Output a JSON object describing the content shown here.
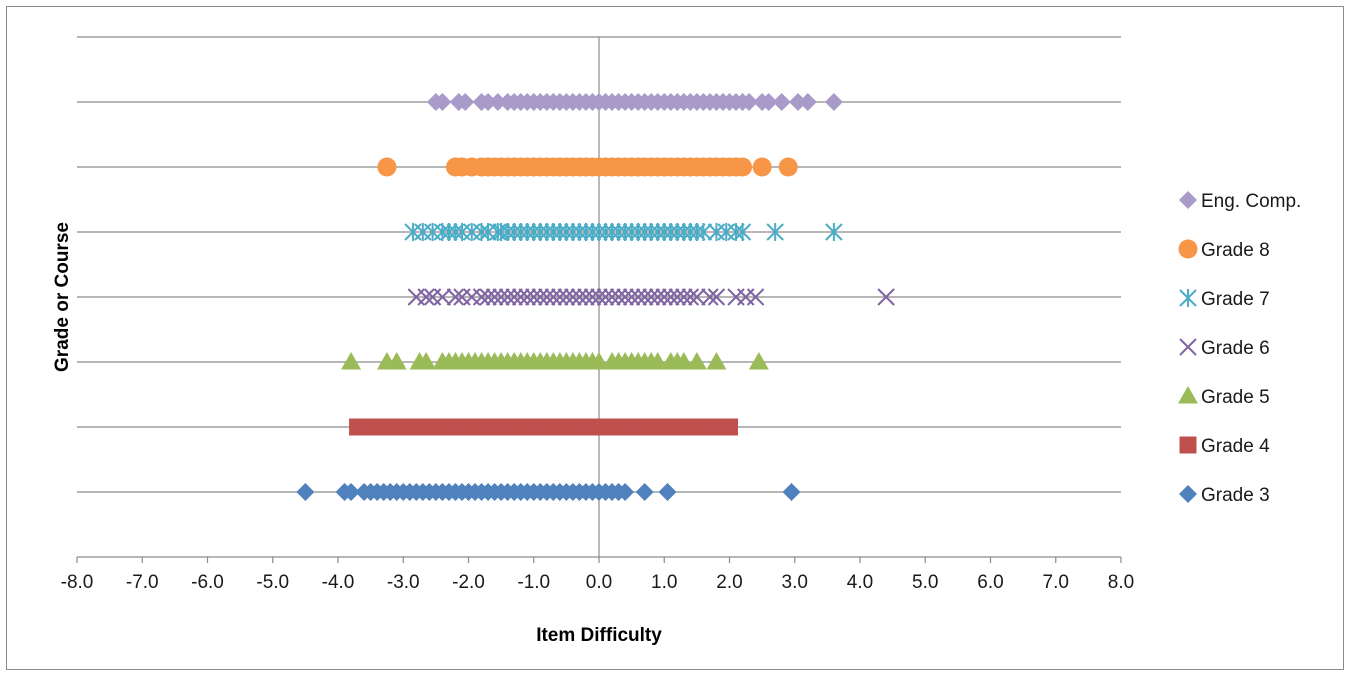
{
  "chart_data": {
    "type": "scatter",
    "title": "",
    "xlabel": "Item Difficulty",
    "ylabel": "Grade or Course",
    "xlim": [
      -8.0,
      8.0
    ],
    "x_ticks": [
      "-8.0",
      "-7.0",
      "-6.0",
      "-5.0",
      "-4.0",
      "-3.0",
      "-2.0",
      "-1.0",
      "0.0",
      "1.0",
      "2.0",
      "3.0",
      "4.0",
      "5.0",
      "6.0",
      "7.0",
      "8.0"
    ],
    "ylim": [
      0,
      8
    ],
    "grid": "horizontal",
    "legend_position": "right",
    "series": [
      {
        "name": "Grade 3",
        "y": 1,
        "marker": "diamond",
        "color": "#4F81BD",
        "x": [
          -4.5,
          -3.9,
          -3.8,
          -3.6,
          -3.5,
          -3.4,
          -3.3,
          -3.2,
          -3.1,
          -3.0,
          -2.9,
          -2.8,
          -2.7,
          -2.6,
          -2.5,
          -2.4,
          -2.3,
          -2.2,
          -2.1,
          -2.0,
          -1.9,
          -1.8,
          -1.7,
          -1.6,
          -1.5,
          -1.4,
          -1.3,
          -1.2,
          -1.1,
          -1.0,
          -0.9,
          -0.8,
          -0.7,
          -0.6,
          -0.5,
          -0.4,
          -0.3,
          -0.2,
          -0.1,
          0.0,
          0.1,
          0.2,
          0.3,
          0.4,
          0.7,
          1.05,
          2.95
        ]
      },
      {
        "name": "Grade 4",
        "y": 2,
        "marker": "square",
        "color": "#C0504D",
        "x": [
          -3.7,
          -3.6,
          -3.5,
          -3.4,
          -3.3,
          -3.2,
          -3.1,
          -3.0,
          -2.9,
          -2.8,
          -2.7,
          -2.6,
          -2.5,
          -2.4,
          -2.3,
          -2.2,
          -2.1,
          -2.0,
          -1.9,
          -1.8,
          -1.7,
          -1.6,
          -1.5,
          -1.4,
          -1.3,
          -1.2,
          -1.1,
          -1.0,
          -0.9,
          -0.8,
          -0.7,
          -0.6,
          -0.5,
          -0.4,
          -0.3,
          -0.2,
          -0.1,
          0.0,
          0.1,
          0.2,
          0.3,
          0.4,
          0.5,
          0.6,
          0.7,
          0.8,
          0.9,
          1.0,
          1.1,
          1.2,
          1.3,
          1.4,
          1.5,
          1.6,
          1.7,
          1.8,
          1.9,
          2.0
        ]
      },
      {
        "name": "Grade 5",
        "y": 3,
        "marker": "triangle",
        "color": "#9BBB59",
        "x": [
          -3.8,
          -3.25,
          -3.1,
          -2.75,
          -2.65,
          -2.4,
          -2.3,
          -2.2,
          -2.1,
          -2.0,
          -1.9,
          -1.8,
          -1.7,
          -1.6,
          -1.5,
          -1.4,
          -1.3,
          -1.2,
          -1.1,
          -1.0,
          -0.9,
          -0.8,
          -0.7,
          -0.6,
          -0.5,
          -0.4,
          -0.3,
          -0.2,
          -0.1,
          0.0,
          0.2,
          0.3,
          0.4,
          0.5,
          0.6,
          0.7,
          0.8,
          0.9,
          1.1,
          1.2,
          1.3,
          1.5,
          1.8,
          2.45
        ]
      },
      {
        "name": "Grade 6",
        "y": 4,
        "marker": "x",
        "color": "#8064A2",
        "x": [
          -2.8,
          -2.65,
          -2.55,
          -2.4,
          -2.2,
          -2.1,
          -1.95,
          -1.8,
          -1.7,
          -1.6,
          -1.5,
          -1.4,
          -1.3,
          -1.2,
          -1.1,
          -1.0,
          -0.9,
          -0.8,
          -0.7,
          -0.6,
          -0.5,
          -0.4,
          -0.3,
          -0.2,
          -0.1,
          0.0,
          0.1,
          0.2,
          0.3,
          0.4,
          0.5,
          0.6,
          0.7,
          0.8,
          0.9,
          1.0,
          1.1,
          1.2,
          1.3,
          1.4,
          1.5,
          1.7,
          1.8,
          2.1,
          2.25,
          2.4,
          4.4
        ]
      },
      {
        "name": "Grade 7",
        "y": 5,
        "marker": "star",
        "color": "#4BACC6",
        "x": [
          -2.85,
          -2.7,
          -2.55,
          -2.4,
          -2.3,
          -2.2,
          -2.1,
          -1.95,
          -1.8,
          -1.7,
          -1.55,
          -1.5,
          -1.4,
          -1.3,
          -1.2,
          -1.1,
          -1.0,
          -0.9,
          -0.8,
          -0.7,
          -0.6,
          -0.5,
          -0.4,
          -0.3,
          -0.2,
          -0.1,
          0.0,
          0.1,
          0.2,
          0.3,
          0.4,
          0.5,
          0.6,
          0.7,
          0.8,
          0.9,
          1.0,
          1.1,
          1.2,
          1.3,
          1.4,
          1.5,
          1.6,
          1.8,
          1.95,
          2.1,
          2.2,
          2.7,
          3.6
        ]
      },
      {
        "name": "Grade 8",
        "y": 6,
        "marker": "circle",
        "color": "#F79646",
        "x": [
          -3.25,
          -2.2,
          -2.1,
          -1.95,
          -1.8,
          -1.7,
          -1.6,
          -1.5,
          -1.4,
          -1.3,
          -1.2,
          -1.1,
          -1.0,
          -0.9,
          -0.8,
          -0.7,
          -0.6,
          -0.5,
          -0.4,
          -0.3,
          -0.2,
          -0.1,
          0.0,
          0.1,
          0.2,
          0.3,
          0.4,
          0.5,
          0.6,
          0.7,
          0.8,
          0.9,
          1.0,
          1.1,
          1.2,
          1.3,
          1.4,
          1.5,
          1.6,
          1.7,
          1.8,
          1.9,
          2.0,
          2.1,
          2.2,
          2.5,
          2.9
        ]
      },
      {
        "name": "Eng. Comp.",
        "y": 7,
        "marker": "diamond",
        "color": "#A99BC9",
        "x": [
          -2.5,
          -2.4,
          -2.15,
          -2.05,
          -1.8,
          -1.7,
          -1.55,
          -1.4,
          -1.3,
          -1.2,
          -1.1,
          -1.0,
          -0.9,
          -0.8,
          -0.7,
          -0.6,
          -0.5,
          -0.4,
          -0.3,
          -0.2,
          -0.1,
          0.0,
          0.1,
          0.2,
          0.3,
          0.4,
          0.5,
          0.6,
          0.7,
          0.8,
          0.9,
          1.0,
          1.1,
          1.2,
          1.3,
          1.4,
          1.5,
          1.6,
          1.7,
          1.8,
          1.9,
          2.0,
          2.1,
          2.2,
          2.3,
          2.5,
          2.6,
          2.8,
          3.05,
          3.2,
          3.6
        ]
      }
    ],
    "legend_order": [
      "Eng. Comp.",
      "Grade 8",
      "Grade 7",
      "Grade 6",
      "Grade 5",
      "Grade 4",
      "Grade 3"
    ]
  }
}
